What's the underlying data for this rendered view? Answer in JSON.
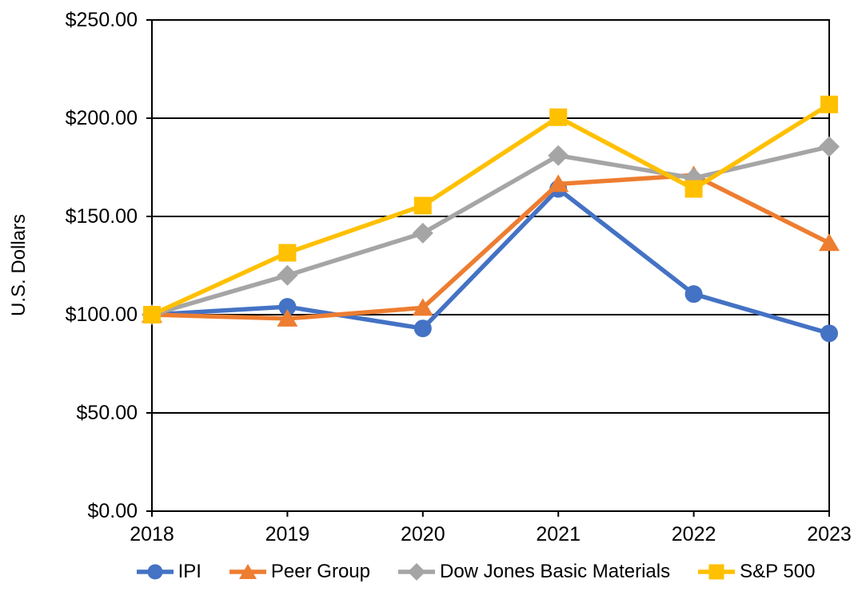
{
  "chart_data": {
    "type": "line",
    "title": "",
    "y_axis_title": "U.S. Dollars",
    "categories": [
      "2018",
      "2019",
      "2020",
      "2021",
      "2022",
      "2023"
    ],
    "y_axis": {
      "min": 0,
      "max": 250,
      "step": 50,
      "tick_labels": [
        "$0.00",
        "$50.00",
        "$100.00",
        "$150.00",
        "$200.00",
        "$250.00"
      ]
    },
    "grid": "horizontal-solid-black",
    "legend_position": "bottom",
    "series": [
      {
        "name": "IPI",
        "color": "#4472C4",
        "marker": "circle",
        "values": [
          100,
          104,
          93,
          164,
          110.5,
          90.5
        ]
      },
      {
        "name": "Peer Group",
        "color": "#ED7D31",
        "marker": "triangle",
        "values": [
          100,
          98,
          103.5,
          166.5,
          171,
          136.5
        ]
      },
      {
        "name": "Dow Jones Basic Materials",
        "color": "#A5A5A5",
        "marker": "diamond",
        "values": [
          100,
          120,
          141.5,
          181,
          169.5,
          185.5
        ]
      },
      {
        "name": "S&P 500",
        "color": "#FFC000",
        "marker": "square",
        "values": [
          100,
          131.5,
          155.5,
          200.5,
          164,
          207
        ]
      }
    ]
  }
}
